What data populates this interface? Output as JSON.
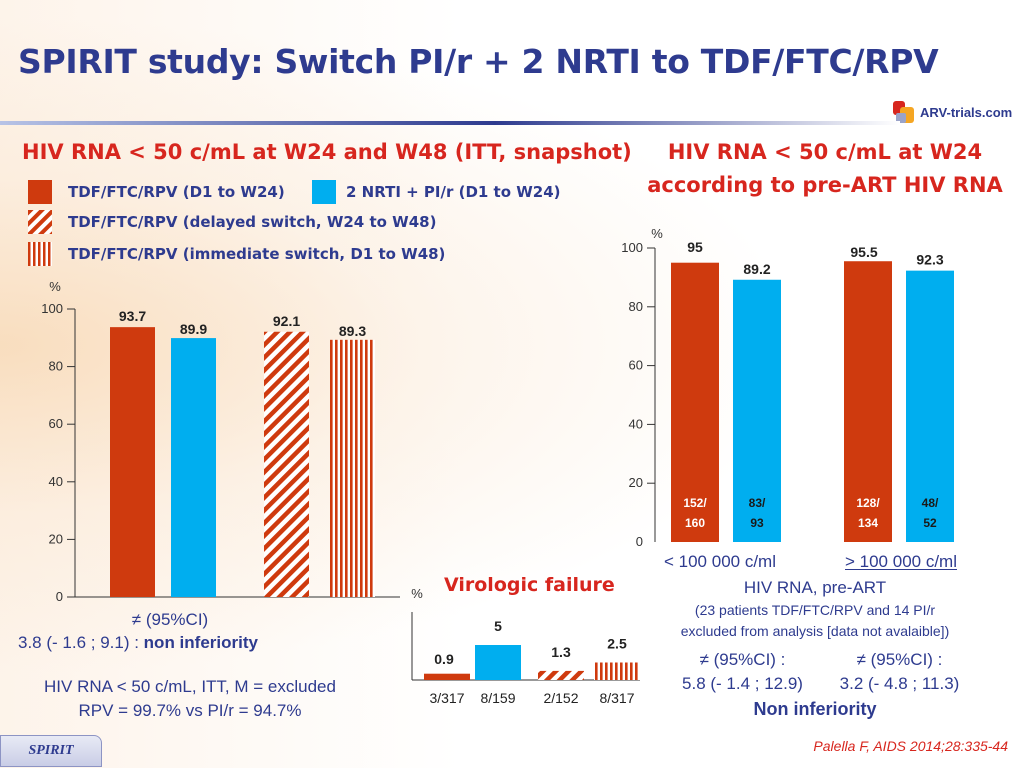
{
  "title": "SPIRIT study: Switch PI/r + 2 NRTI to TDF/FTC/RPV",
  "logo_text": "ARV-trials.com",
  "colors": {
    "rpv": "#cf3a0e",
    "pi": "#00aeef",
    "title": "#2e3b8f",
    "accent_red": "#d7261e"
  },
  "left_panel": {
    "title": "HIV RNA < 50 c/mL at W24 and W48 (ITT, snapshot)",
    "legend": [
      {
        "label": "TDF/FTC/RPV (D1 to W24)",
        "style": "solid-red"
      },
      {
        "label": "2 NRTI + PI/r (D1 to W24)",
        "style": "solid-blue"
      },
      {
        "label": "TDF/FTC/RPV (delayed switch, W24 to W48)",
        "style": "diagonal-hatch"
      },
      {
        "label": "TDF/FTC/RPV (immediate switch, D1 to W48)",
        "style": "vertical-stripes"
      }
    ],
    "diff_symbol_line": "≠ (95%CI)",
    "diff_value": "3.8 (- 1.6 ; 9.1) : ",
    "diff_conclusion": "non inferiority",
    "footnote_line1": "HIV RNA < 50 c/mL, ITT, M = excluded",
    "footnote_line2": "RPV = 99.7% vs PI/r = 94.7%"
  },
  "right_panel": {
    "title_line1": "HIV RNA < 50 c/mL at W24",
    "title_line2": "according to pre-ART HIV RNA",
    "group_labels": [
      "< 100 000 c/ml",
      "> 100 000 c/ml"
    ],
    "axis_title": "HIV RNA, pre-ART",
    "excluded_line1": "(23 patients TDF/FTC/RPV and 14 PI/r",
    "excluded_line2": "excluded from analysis [data not avalaible])",
    "diff_low_label": "≠ (95%CI) :",
    "diff_low_value": "5.8 (- 1.4 ; 12.9)",
    "diff_high_label": "≠ (95%CI) :",
    "diff_high_value": "3.2 (- 4.8 ; 11.3)",
    "conclusion": "Non inferiority"
  },
  "vf_panel": {
    "title": "Virologic failure"
  },
  "footer": {
    "tab_label": "SPIRIT",
    "citation": "Palella F, AIDS 2014;28:335-44"
  },
  "chart_data": [
    {
      "type": "bar",
      "title": "HIV RNA < 50 c/mL at W24 and W48 (ITT, snapshot)",
      "ylabel": "%",
      "ylim": [
        0,
        100
      ],
      "yticks": [
        0,
        20,
        40,
        60,
        80,
        100
      ],
      "bars": [
        {
          "series": "TDF/FTC/RPV (D1 to W24)",
          "value": 93.7,
          "label": "93.7",
          "style": "solid-red"
        },
        {
          "series": "2 NRTI + PI/r (D1 to W24)",
          "value": 89.9,
          "label": "89.9",
          "style": "solid-blue"
        },
        {
          "series": "TDF/FTC/RPV (delayed switch, W24 to W48)",
          "value": 92.1,
          "label": "92.1",
          "style": "diagonal-hatch"
        },
        {
          "series": "TDF/FTC/RPV (immediate switch, D1 to W48)",
          "value": 89.3,
          "label": "89.3",
          "style": "vertical-stripes"
        }
      ]
    },
    {
      "type": "bar",
      "title": "HIV RNA < 50 c/mL at W24 according to pre-ART HIV RNA",
      "ylabel": "%",
      "xlabel": "HIV RNA, pre-ART",
      "ylim": [
        0,
        100
      ],
      "yticks": [
        0,
        20,
        40,
        60,
        80,
        100
      ],
      "categories": [
        "< 100 000 c/ml",
        "> 100 000 c/ml"
      ],
      "bars": [
        {
          "group": 0,
          "value": 95,
          "label": "95",
          "count": [
            "152/",
            "160"
          ],
          "style": "solid-red"
        },
        {
          "group": 0,
          "value": 89.2,
          "label": "89.2",
          "count": [
            "83/",
            "93"
          ],
          "style": "solid-blue"
        },
        {
          "group": 1,
          "value": 95.5,
          "label": "95.5",
          "count": [
            "128/",
            "134"
          ],
          "style": "solid-red"
        },
        {
          "group": 1,
          "value": 92.3,
          "label": "92.3",
          "count": [
            "48/",
            "52"
          ],
          "style": "solid-blue"
        }
      ]
    },
    {
      "type": "bar",
      "title": "Virologic failure",
      "ylabel": "%",
      "bars": [
        {
          "value": 0.9,
          "label": "0.9",
          "count": "3/317",
          "style": "solid-red"
        },
        {
          "value": 5,
          "label": "5",
          "count": "8/159",
          "style": "solid-blue"
        },
        {
          "value": 1.3,
          "label": "1.3",
          "count": "2/152",
          "style": "diagonal-hatch"
        },
        {
          "value": 2.5,
          "label": "2.5",
          "count": "8/317",
          "style": "vertical-stripes"
        }
      ]
    }
  ]
}
